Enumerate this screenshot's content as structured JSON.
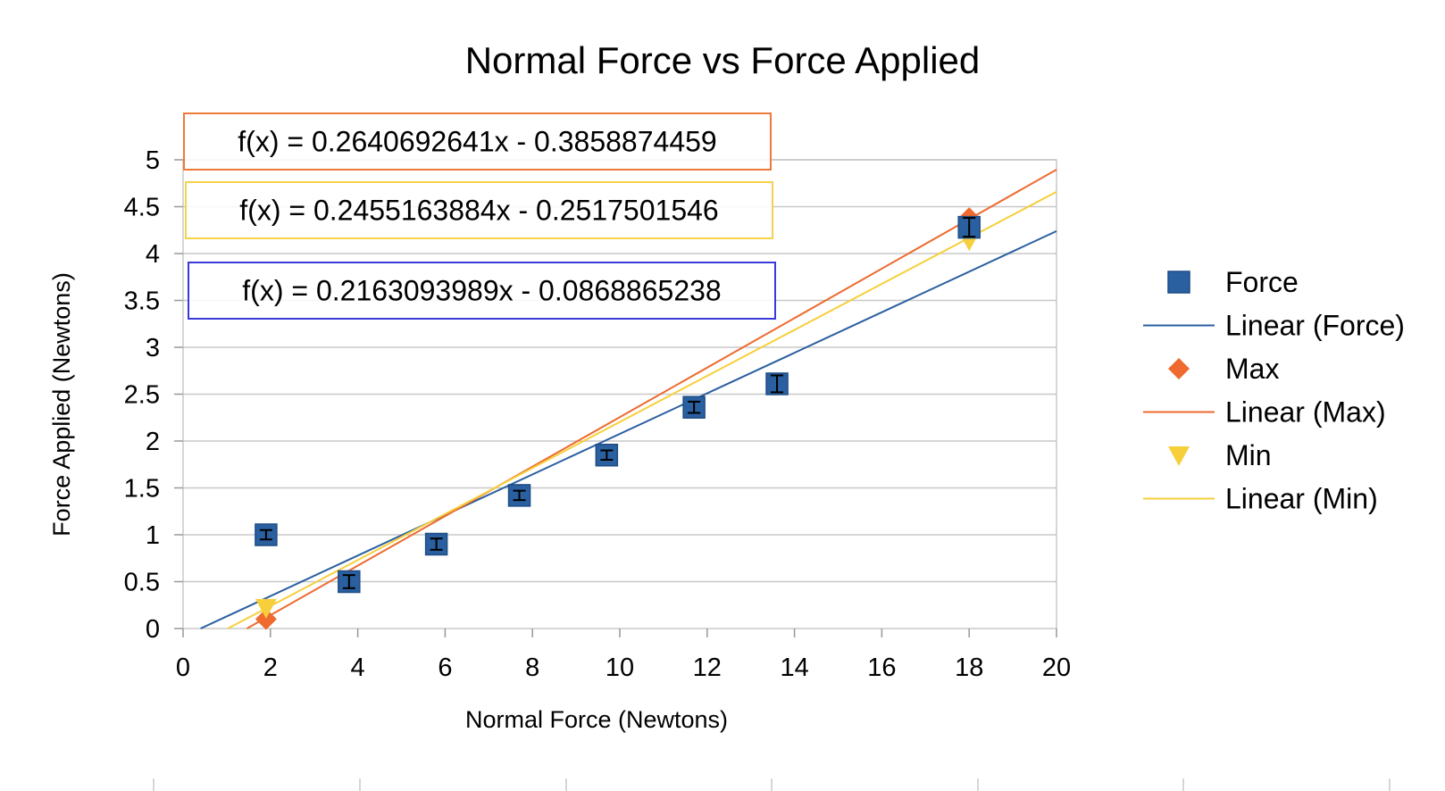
{
  "chart_data": {
    "type": "scatter",
    "title": "Normal Force vs Force Applied",
    "xlabel": "Normal Force (Newtons)",
    "ylabel": "Force  Applied  (Newtons)",
    "xlim": [
      0,
      20
    ],
    "ylim": [
      0,
      5
    ],
    "x_ticks": [
      "0",
      "2",
      "4",
      "6",
      "8",
      "10",
      "12",
      "14",
      "16",
      "18",
      "20"
    ],
    "y_ticks": [
      "0",
      "0.5",
      "1",
      "1.5",
      "2",
      "2.5",
      "3",
      "3.5",
      "4",
      "4.5",
      "5"
    ],
    "grid": "horizontal",
    "legend_position": "right",
    "series": [
      {
        "name": "Force",
        "marker": "square",
        "color": "#2a5fa0",
        "points": [
          {
            "x": 1.9,
            "y": 1.0,
            "err": 0.05
          },
          {
            "x": 3.8,
            "y": 0.5,
            "err": 0.07
          },
          {
            "x": 5.8,
            "y": 0.9,
            "err": 0.06
          },
          {
            "x": 7.7,
            "y": 1.42,
            "err": 0.05
          },
          {
            "x": 9.7,
            "y": 1.85,
            "err": 0.05
          },
          {
            "x": 11.7,
            "y": 2.36,
            "err": 0.06
          },
          {
            "x": 13.6,
            "y": 2.61,
            "err": 0.09
          },
          {
            "x": 18.0,
            "y": 4.28,
            "err": 0.1
          }
        ]
      },
      {
        "name": "Max",
        "marker": "diamond",
        "color": "#ee6a2f",
        "points": [
          {
            "x": 1.9,
            "y": 0.1
          },
          {
            "x": 18.0,
            "y": 4.38
          }
        ]
      },
      {
        "name": "Min",
        "marker": "triangle-down",
        "color": "#f7cf3b",
        "points": [
          {
            "x": 1.9,
            "y": 0.22
          },
          {
            "x": 18.0,
            "y": 4.14
          }
        ]
      }
    ],
    "trendlines": [
      {
        "name": "Linear (Force)",
        "color": "#2a5fa0",
        "slope": 0.2163093989,
        "intercept": -0.0868865238,
        "equation": "f(x) = 0.2163093989x - 0.0868865238",
        "box_color": "#3a3adb"
      },
      {
        "name": "Linear (Max)",
        "color": "#ee6a2f",
        "slope": 0.2640692641,
        "intercept": -0.3858874459,
        "equation": "f(x) = 0.2640692641x - 0.3858874459",
        "box_color": "#ee7a3a"
      },
      {
        "name": "Linear (Min)",
        "color": "#f7cf3b",
        "slope": 0.2455163884,
        "intercept": -0.2517501546,
        "equation": "f(x) = 0.2455163884x - 0.2517501546",
        "box_color": "#f5d24a"
      }
    ],
    "legend": [
      {
        "label": "Force",
        "kind": "square",
        "color": "#2a5fa0"
      },
      {
        "label": "Linear (Force)",
        "kind": "line",
        "color": "#2a5fa0"
      },
      {
        "label": "Max",
        "kind": "diamond",
        "color": "#ee6a2f"
      },
      {
        "label": "Linear (Max)",
        "kind": "line",
        "color": "#ee6a2f"
      },
      {
        "label": "Min",
        "kind": "triangle-down",
        "color": "#f7cf3b"
      },
      {
        "label": "Linear (Min)",
        "kind": "line",
        "color": "#f7cf3b"
      }
    ]
  }
}
